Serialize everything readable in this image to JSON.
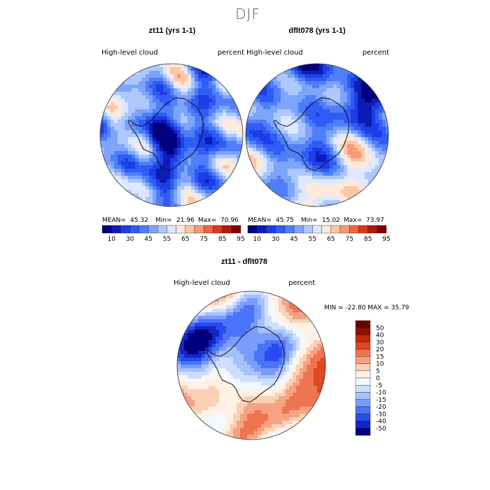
{
  "page_title": "DJF",
  "colors": {
    "seq": [
      "#00007e",
      "#0c1db4",
      "#1c3ee6",
      "#2f5cf4",
      "#4f7ff8",
      "#7ea4fb",
      "#aec8fd",
      "#dde9fe",
      "#feeadb",
      "#fcc6a7",
      "#f99a72",
      "#f0663f",
      "#d93a1a",
      "#b21907",
      "#7f0000"
    ],
    "diff": [
      "#00007e",
      "#1226c2",
      "#2a4bee",
      "#4a73f7",
      "#7a9cfa",
      "#a6c1fc",
      "#cedffe",
      "#f4f8ff",
      "#fff1e4",
      "#fbd0b6",
      "#f6a383",
      "#ef7550",
      "#de4823",
      "#c12a0e",
      "#940d00",
      "#6c0000"
    ]
  },
  "chart_data": [
    {
      "type": "heatmap",
      "panel": "left",
      "title": "zt11 (yrs 1-1)",
      "variable": "High-level cloud",
      "units": "percent",
      "stats": {
        "mean_label": "MEAN=",
        "mean": "45.32",
        "min_label": "Min=",
        "min": "21.96",
        "max_label": "Max=",
        "max": "70.96"
      },
      "colorbar_ticks": [
        "10",
        "30",
        "45",
        "55",
        "65",
        "75",
        "85",
        "95"
      ]
    },
    {
      "type": "heatmap",
      "panel": "right",
      "title": "dflt078 (yrs 1-1)",
      "variable": "High-level cloud",
      "units": "percent",
      "stats": {
        "mean_label": "MEAN=",
        "mean": "45.75",
        "min_label": "Min=",
        "min": "15.02",
        "max_label": "Max=",
        "max": "73.97"
      },
      "colorbar_ticks": [
        "10",
        "30",
        "45",
        "55",
        "65",
        "75",
        "85",
        "95"
      ]
    },
    {
      "type": "heatmap",
      "panel": "difference",
      "title": "zt11 - dflt078",
      "variable": "High-level cloud",
      "units": "percent",
      "stats_text": "MIN = -22.80 MAX = 35.79",
      "colorbar_ticks": [
        "50",
        "40",
        "30",
        "20",
        "15",
        "10",
        "5",
        "0",
        "-5",
        "-10",
        "-15",
        "-20",
        "-30",
        "-40",
        "-50"
      ]
    }
  ]
}
